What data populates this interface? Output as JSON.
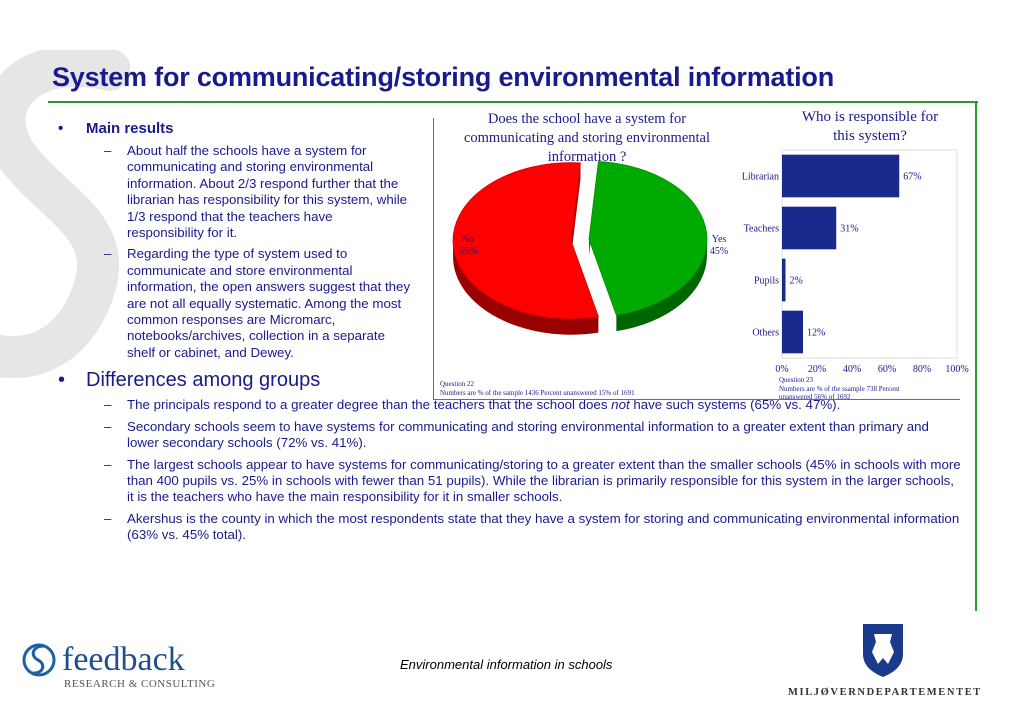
{
  "title": "System for communicating/storing environmental information",
  "main_results": {
    "heading": "Main results",
    "items": [
      "About half the schools have a system for communicating and storing environmental information. About 2/3 respond further that the librarian has responsibility for this system, while 1/3 respond that the teachers have responsibility for it.",
      "Regarding the type of system used to communicate and store environmental information, the open answers suggest that they are not all equally systematic. Among the most common responses are Micromarc, notebooks/archives, collection in a separate shelf or cabinet, and Dewey."
    ]
  },
  "differences": {
    "heading": "Differences among groups",
    "item1_before": "The principals respond to a greater degree than the teachers that the school does ",
    "item1_em": "not",
    "item1_after": " have such systems (65% vs. 47%).",
    "items": [
      "Secondary schools seem to have systems for communicating and storing environmental information to a greater extent than primary and lower secondary schools (72% vs. 41%).",
      "The largest schools appear to have systems for communicating/storing to a greater extent than the smaller schools (45% in schools with more than 400 pupils vs. 25% in schools with fewer than 51 pupils). While the librarian is primarily responsible for this system in the larger schools, it is the teachers who have the main responsibility for it in smaller schools.",
      "Akershus is the county in which the most respondents state that they have a system for storing and communicating environmental information (63% vs. 45% total)."
    ]
  },
  "chart_data": [
    {
      "type": "pie",
      "title": "Does the school have a system for communicating and storing environmental information ?",
      "categories": [
        "No",
        "Yes"
      ],
      "values": [
        55,
        45
      ],
      "value_labels": [
        "55%",
        "45%"
      ],
      "colors": [
        "#ff0000",
        "#00aa00"
      ],
      "note_line1": "Question 22",
      "note_line2": "Numbers are % of the sample 1436 Percent unanswered 15% of 1691"
    },
    {
      "type": "bar",
      "orientation": "horizontal",
      "title": "Who is responsible for this system?",
      "categories": [
        "Librarian",
        "Teachers",
        "Pupils",
        "Others"
      ],
      "values": [
        67,
        31,
        2,
        12
      ],
      "value_labels": [
        "67%",
        "31%",
        "2%",
        "12%"
      ],
      "xlim": [
        0,
        100
      ],
      "x_ticks": [
        "0%",
        "20%",
        "40%",
        "60%",
        "80%",
        "100%"
      ],
      "color": "#1a2a8c",
      "note_line1": "Question 23",
      "note_line2": "Numbers are % of the ssample 738 Percent",
      "note_line3": "unanswered 56% of 1692"
    }
  ],
  "footer": {
    "center_text": "Environmental information in schools",
    "logo_left_name": "feedback",
    "logo_left_sub": "RESEARCH & CONSULTING",
    "logo_right_name": "MILJØVERNDEPARTEMENTET"
  },
  "colors": {
    "title": "#1a1a8c",
    "rule": "#2e9a2e"
  }
}
